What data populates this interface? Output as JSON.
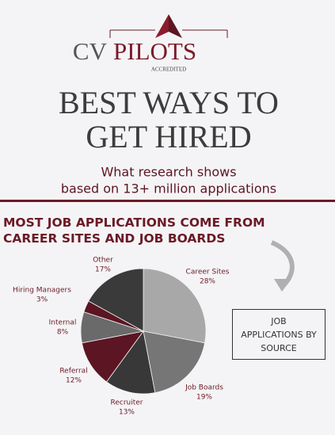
{
  "header": {
    "brand_left": "CV",
    "brand_right": "PILOTS",
    "accredited": "ACCREDITED",
    "title_lines": [
      "BEST WAYS TO",
      "GET HIRED"
    ],
    "subtitle_lines": [
      "What research shows",
      "based on 13+ million applications"
    ],
    "section_heading": "MOST JOB APPLICATIONS COME FROM CAREER SITES AND JOB BOARDS"
  },
  "chart_data": {
    "type": "pie",
    "title": "JOB APPLICATIONS BY SOURCE",
    "categories": [
      "Career Sites",
      "Job Boards",
      "Recruiter",
      "Referral",
      "Internal",
      "Hiring Managers",
      "Other"
    ],
    "values": [
      28,
      19,
      13,
      12,
      8,
      3,
      17
    ],
    "value_labels": [
      "28%",
      "19%",
      "13%",
      "12%",
      "8%",
      "3%",
      "17%"
    ],
    "colors": [
      "#a8a8a8",
      "#767676",
      "#383838",
      "#5c1522",
      "#6a6a6a",
      "#5c1522",
      "#3a3a3a"
    ]
  }
}
